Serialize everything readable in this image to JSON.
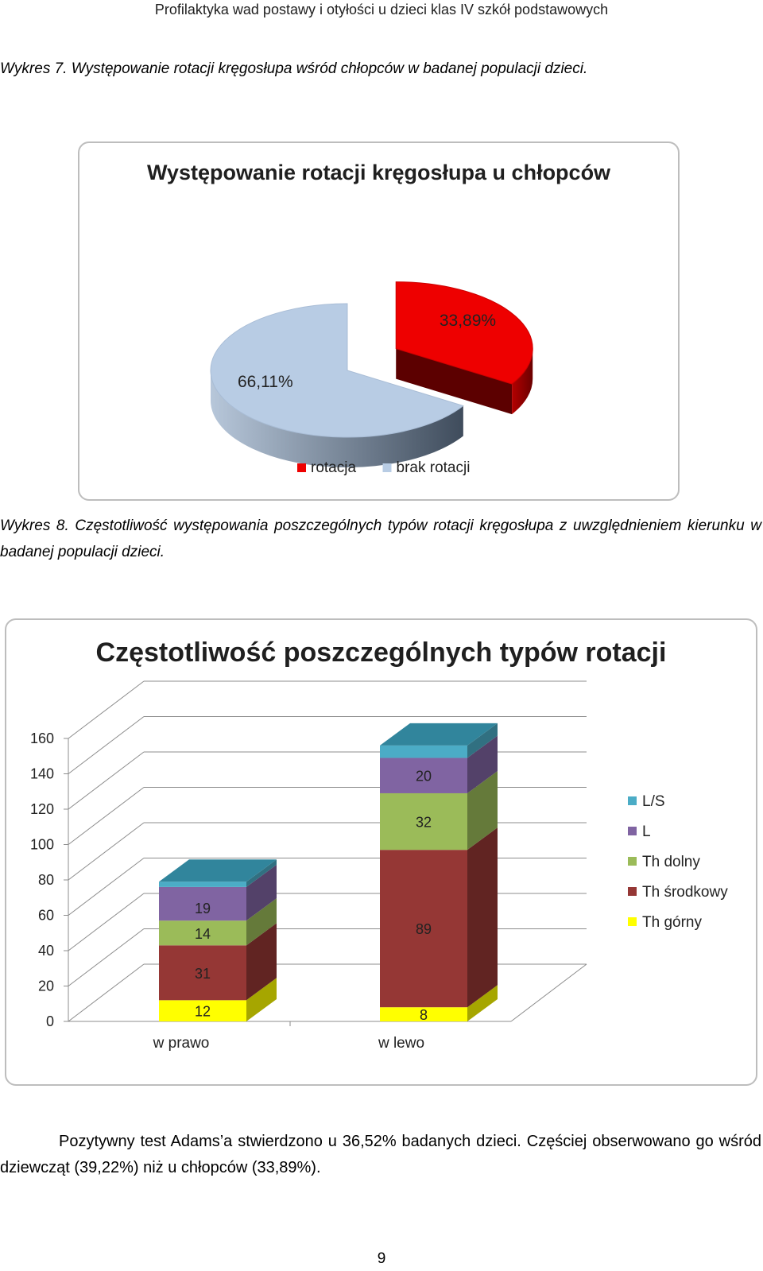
{
  "header": {
    "running_title": "Profilaktyka wad postawy i otyłości u dzieci klas IV szkół podstawowych"
  },
  "figures": [
    {
      "label": "Wykres 7.",
      "caption": "Występowanie rotacji kręgosłupa wśród chłopców w badanej populacji dzieci."
    },
    {
      "label": "Wykres 8.",
      "caption": "Częstotliwość występowania poszczególnych typów rotacji kręgosłupa z uwzględnieniem kierunku w badanej populacji dzieci."
    }
  ],
  "colors": {
    "rotacja": "#ee0000",
    "rotacja_side": "#8a0000",
    "brak": "#b8cce4",
    "brak_side": "#6b7f97",
    "th_gorny": "#ffff00",
    "th_srodkowy": "#953735",
    "th_dolny": "#9bbb59",
    "l": "#8064a2",
    "ls": "#4bacc6"
  },
  "chart_data": [
    {
      "type": "pie",
      "title": "Występowanie rotacji kręgosłupa u chłopców",
      "series": [
        {
          "name": "rotacja",
          "value": 33.89,
          "label": "33,89%"
        },
        {
          "name": "brak rotacji",
          "value": 66.11,
          "label": "66,11%"
        }
      ],
      "legend": [
        "rotacja",
        "brak rotacji"
      ]
    },
    {
      "type": "bar",
      "stacked": true,
      "title": "Częstotliwość poszczególnych typów rotacji",
      "categories": [
        "w prawo",
        "w lewo"
      ],
      "series": [
        {
          "name": "Th górny",
          "values": [
            12,
            8
          ]
        },
        {
          "name": "Th środkowy",
          "values": [
            31,
            89
          ]
        },
        {
          "name": "Th dolny",
          "values": [
            14,
            32
          ]
        },
        {
          "name": "L",
          "values": [
            19,
            20
          ]
        },
        {
          "name": "L/S",
          "values": [
            3,
            7
          ]
        }
      ],
      "yticks": [
        "0",
        "20",
        "40",
        "60",
        "80",
        "100",
        "120",
        "140",
        "160"
      ],
      "ylim": [
        0,
        160
      ],
      "legend": [
        "L/S",
        "L",
        "Th dolny",
        "Th środkowy",
        "Th górny"
      ]
    }
  ],
  "body": {
    "paragraph": "Pozytywny test Adams’a stwierdzono u 36,52% badanych dzieci. Częściej obserwowano go wśród dziewcząt (39,22%) niż u chłopców (33,89%)."
  },
  "page_number": "9"
}
